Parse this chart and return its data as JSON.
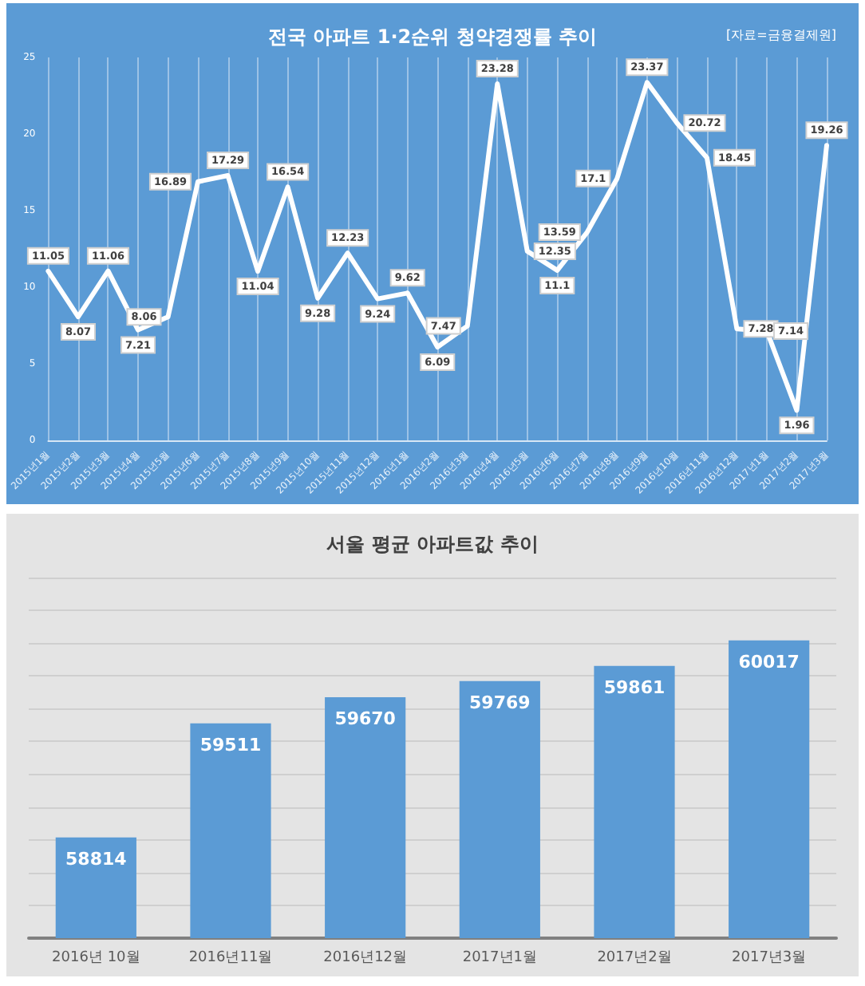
{
  "chart_data": [
    {
      "type": "line",
      "title": "전국 아파트 1·2순위 청약경쟁률 추이",
      "annotations": [
        "[자료=금융결제원]"
      ],
      "categories": [
        "2015년1월",
        "2015년2월",
        "2015년3월",
        "2015년4월",
        "2015년5월",
        "2015년6월",
        "2015년7월",
        "2015년8월",
        "2015년9월",
        "2015년10월",
        "2015년11월",
        "2015년12월",
        "2016년1월",
        "2016년2월",
        "2016년3월",
        "2016년4월",
        "2016년5월",
        "2016년6월",
        "2016년7월",
        "2016년8월",
        "2016년9월",
        "2016년10월",
        "2016년11월",
        "2016년12월",
        "2017년1월",
        "2017년2월",
        "2017년3월"
      ],
      "series": [
        {
          "color": "#ffffff",
          "values": [
            11.05,
            8.07,
            11.06,
            7.21,
            8.06,
            16.89,
            17.29,
            11.04,
            16.54,
            9.28,
            12.23,
            9.24,
            9.62,
            6.09,
            7.47,
            23.28,
            12.35,
            11.1,
            13.59,
            17.1,
            23.37,
            20.72,
            18.45,
            7.28,
            7.14,
            1.96,
            19.26
          ]
        }
      ],
      "ylim": [
        0,
        25
      ],
      "yticks": [
        0,
        5,
        10,
        15,
        20,
        25
      ],
      "grid": "x",
      "marker": "none",
      "line_style": "solid",
      "data_labels": true
    },
    {
      "type": "bar",
      "title": "서울 평균 아파트값 추이",
      "categories": [
        "2016년 10월",
        "2016년11월",
        "2016년12월",
        "2017년1월",
        "2017년2월",
        "2017년3월"
      ],
      "values": [
        58814,
        59511,
        59670,
        59769,
        59861,
        60017
      ],
      "color": "#5b9bd5",
      "ylim": [
        58200,
        60400
      ],
      "yticks": [
        {
          "value": 58200,
          "label": null
        },
        {
          "value": 58400,
          "label": null
        },
        {
          "value": 58600,
          "label": null
        },
        {
          "value": 58800,
          "label": null
        },
        {
          "value": 59000,
          "label": null
        },
        {
          "value": 59200,
          "label": null
        },
        {
          "value": 59400,
          "label": null
        },
        {
          "value": 59600,
          "label": null
        },
        {
          "value": 59800,
          "label": null
        },
        {
          "value": 60000,
          "label": null
        },
        {
          "value": 60200,
          "label": null
        },
        {
          "value": 60400,
          "label": null
        }
      ],
      "grid": "y",
      "tick_labels": "x",
      "data_labels": true
    }
  ]
}
